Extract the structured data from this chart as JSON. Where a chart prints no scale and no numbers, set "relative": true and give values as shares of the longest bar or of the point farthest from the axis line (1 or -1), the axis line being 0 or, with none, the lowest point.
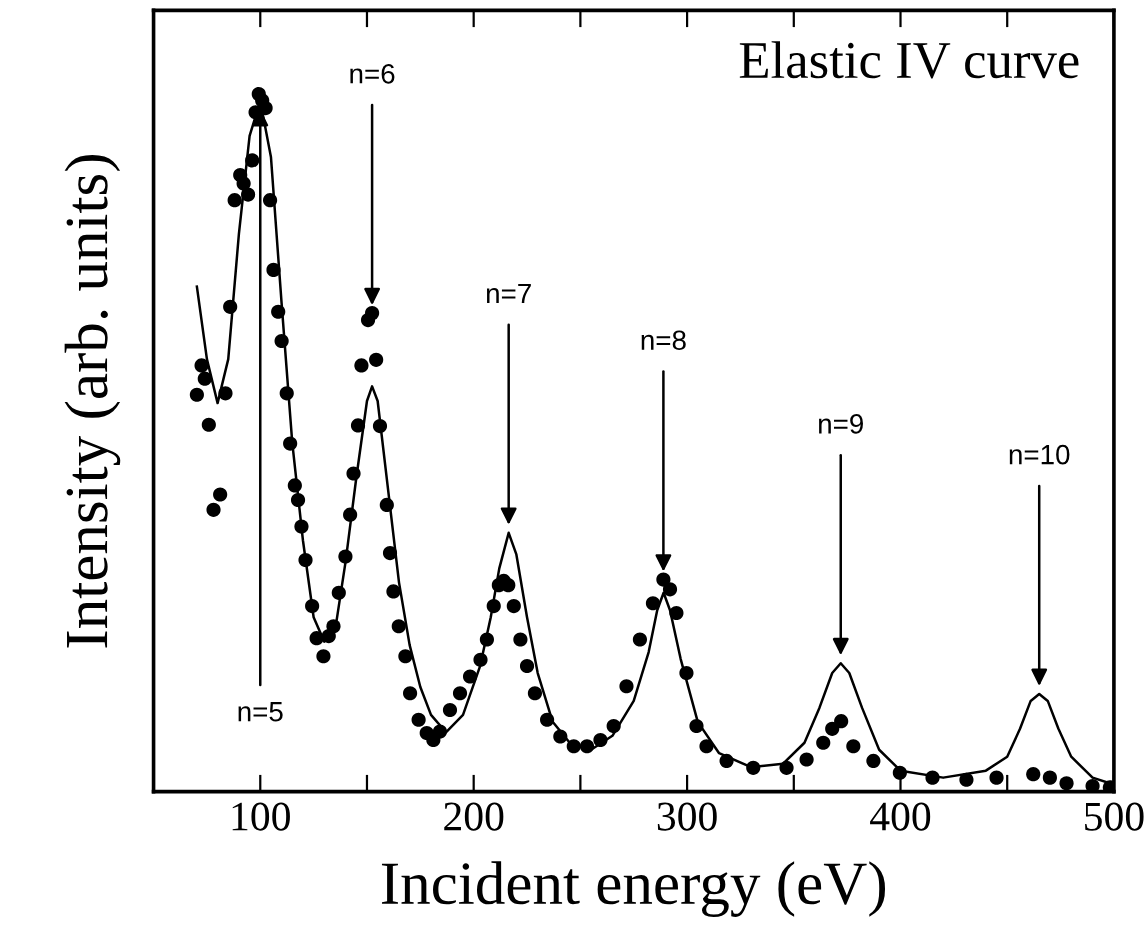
{
  "chart_data": {
    "type": "scatter",
    "relative": true,
    "xlabel": "Incident energy (eV)",
    "ylabel": "Intensity (arb. units)",
    "xlim": [
      50,
      500
    ],
    "xticks": [
      100,
      {
        "value": 150,
        "label": null
      },
      200,
      {
        "value": 250,
        "label": null
      },
      300,
      {
        "value": 350,
        "label": null
      },
      400,
      {
        "value": 450,
        "label": null
      },
      500
    ],
    "tick_labels": "x",
    "grid": false,
    "legend": false,
    "annotations": [
      "Elastic IV curve",
      {
        "text": "n=5",
        "x": 100,
        "y": 0.99
      },
      {
        "text": "n=6",
        "x": 152.4,
        "y": 0.686
      },
      {
        "text": "n=7",
        "x": 216.4,
        "y": 0.371
      },
      {
        "text": "n=8",
        "x": 288.9,
        "y": 0.304
      },
      {
        "text": "n=9",
        "x": 372,
        "y": 0.184
      },
      {
        "text": "n=10",
        "x": 465,
        "y": 0.14
      }
    ],
    "series": [
      {
        "color": "#000000",
        "marker": "circle",
        "x": [
          70.3,
          72.5,
          74,
          75.9,
          78.1,
          81.2,
          83.7,
          85.9,
          88,
          90.6,
          92.2,
          94.3,
          96.2,
          97.8,
          99.3,
          100.9,
          102.5,
          104.6,
          106.2,
          108.4,
          110,
          112.4,
          114,
          116.2,
          117.7,
          119.3,
          121.2,
          124.3,
          126.4,
          129.6,
          132.1,
          134.3,
          136.8,
          139.9,
          142.1,
          143.7,
          145.8,
          147.4,
          150.5,
          152.4,
          154.3,
          156.1,
          159.3,
          160.8,
          162.4,
          164.9,
          168,
          170.2,
          174.2,
          178,
          181.1,
          184.2,
          188.9,
          193.6,
          198.3,
          203.2,
          206.2,
          209.4,
          211.8,
          214.1,
          216.2,
          218.8,
          221.9,
          225,
          228.7,
          234.4,
          240.6,
          246.9,
          253.1,
          259.4,
          265.6,
          271.6,
          277.9,
          284,
          288.9,
          292,
          295,
          299.7,
          304.4,
          309.1,
          318.5,
          331,
          346.6,
          356,
          363.8,
          368,
          372.2,
          377.9,
          387.3,
          399.7,
          415,
          430.9,
          445,
          462.2,
          470,
          477.8,
          490,
          498.1
        ],
        "values": [
          0.569,
          0.611,
          0.592,
          0.526,
          0.404,
          0.426,
          0.571,
          0.695,
          0.848,
          0.884,
          0.872,
          0.856,
          0.905,
          0.974,
          1,
          0.991,
          0.98,
          0.848,
          0.748,
          0.688,
          0.646,
          0.571,
          0.499,
          0.439,
          0.418,
          0.38,
          0.332,
          0.266,
          0.22,
          0.194,
          0.223,
          0.237,
          0.285,
          0.337,
          0.397,
          0.456,
          0.525,
          0.611,
          0.676,
          0.686,
          0.619,
          0.524,
          0.411,
          0.342,
          0.287,
          0.237,
          0.194,
          0.141,
          0.103,
          0.084,
          0.074,
          0.086,
          0.117,
          0.141,
          0.165,
          0.189,
          0.218,
          0.266,
          0.296,
          0.302,
          0.296,
          0.266,
          0.218,
          0.18,
          0.141,
          0.103,
          0.079,
          0.065,
          0.065,
          0.074,
          0.094,
          0.151,
          0.218,
          0.27,
          0.304,
          0.29,
          0.256,
          0.17,
          0.094,
          0.065,
          0.044,
          0.034,
          0.034,
          0.046,
          0.07,
          0.09,
          0.101,
          0.065,
          0.044,
          0.027,
          0.02,
          0.017,
          0.02,
          0.025,
          0.02,
          0.012,
          0.008,
          0.006
        ]
      },
      {
        "type": "line",
        "color": "#000000",
        "marker": "none",
        "line_style": "solid",
        "x": [
          70.3,
          75,
          80,
          85,
          90,
          95,
          100,
          105,
          110,
          115,
          120,
          125,
          130,
          135,
          140,
          145,
          150,
          152.4,
          155,
          160,
          165,
          170,
          175,
          180,
          187,
          195,
          203,
          208,
          212,
          216.4,
          220,
          225,
          230,
          237,
          245,
          255,
          265,
          275,
          282,
          286,
          289,
          292,
          297,
          305,
          315,
          330,
          345,
          355,
          362,
          368,
          372,
          376,
          382,
          390,
          400,
          420,
          440,
          450,
          456,
          461,
          465,
          469,
          474,
          480,
          490,
          500
        ],
        "values": [
          0.724,
          0.62,
          0.557,
          0.62,
          0.8,
          0.94,
          0.99,
          0.91,
          0.7,
          0.5,
          0.36,
          0.25,
          0.215,
          0.23,
          0.33,
          0.45,
          0.56,
          0.581,
          0.56,
          0.43,
          0.3,
          0.21,
          0.15,
          0.11,
          0.085,
          0.11,
          0.18,
          0.25,
          0.32,
          0.371,
          0.34,
          0.25,
          0.17,
          0.1,
          0.07,
          0.06,
          0.08,
          0.13,
          0.2,
          0.26,
          0.285,
          0.26,
          0.19,
          0.1,
          0.055,
          0.035,
          0.04,
          0.07,
          0.12,
          0.17,
          0.184,
          0.17,
          0.12,
          0.06,
          0.03,
          0.02,
          0.03,
          0.05,
          0.09,
          0.13,
          0.14,
          0.13,
          0.09,
          0.05,
          0.02,
          0.01
        ]
      }
    ]
  }
}
